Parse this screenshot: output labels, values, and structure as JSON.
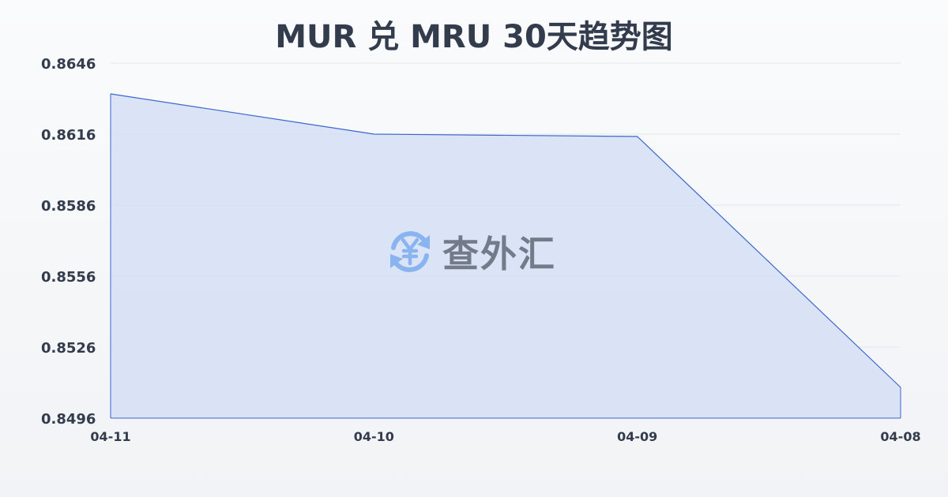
{
  "chart_data": {
    "type": "area",
    "title": "MUR 兑 MRU 30天趋势图",
    "categories": [
      "04-11",
      "04-10",
      "04-09",
      "04-08"
    ],
    "values": [
      0.8633,
      0.8616,
      0.8615,
      0.8509
    ],
    "ylim": [
      0.8496,
      0.8646
    ],
    "yticks": [
      "0.8646",
      "0.8616",
      "0.8586",
      "0.8556",
      "0.8526",
      "0.8496"
    ],
    "grid": true,
    "colors": {
      "line": "#3b66cc",
      "fill": "#d3def5",
      "grid": "#e3e6ec"
    }
  },
  "watermark": {
    "text": "查外汇",
    "icon": "yen-exchange-icon",
    "icon_color": "#8ab4f0"
  }
}
